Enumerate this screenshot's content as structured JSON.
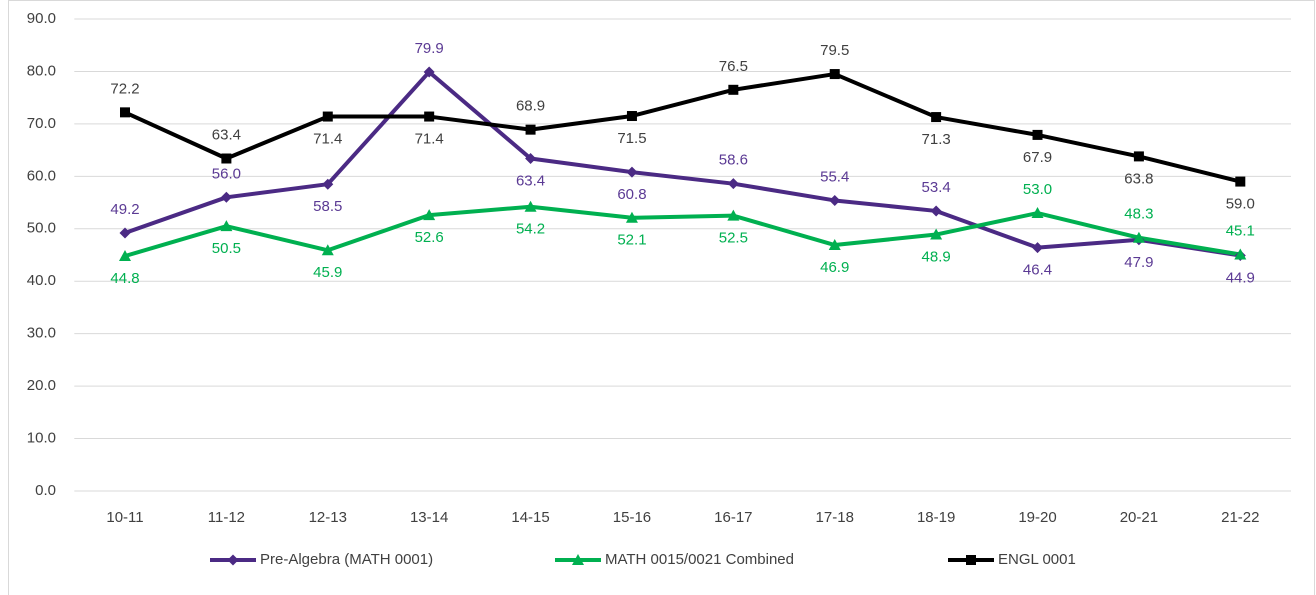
{
  "chart_data": {
    "type": "line",
    "categories": [
      "10-11",
      "11-12",
      "12-13",
      "13-14",
      "14-15",
      "15-16",
      "16-17",
      "17-18",
      "18-19",
      "19-20",
      "20-21",
      "21-22"
    ],
    "series": [
      {
        "name": "Pre-Algebra (MATH 0001)",
        "color": "#4b2a84",
        "label_color": "#5b3a94",
        "marker": "diamond",
        "values": [
          49.2,
          56.0,
          58.5,
          79.9,
          63.4,
          60.8,
          58.6,
          55.4,
          53.4,
          46.4,
          47.9,
          44.9
        ],
        "value_labels": [
          "49.2",
          "56.0",
          "58.5",
          "79.9",
          "63.4",
          "60.8",
          "58.6",
          "55.4",
          "53.4",
          "46.4",
          "47.9",
          "44.9"
        ]
      },
      {
        "name": "MATH 0015/0021 Combined",
        "color": "#00b050",
        "label_color": "#00b050",
        "marker": "triangle",
        "values": [
          44.8,
          50.5,
          45.9,
          52.6,
          54.2,
          52.1,
          52.5,
          46.9,
          48.9,
          53.0,
          48.3,
          45.1
        ],
        "value_labels": [
          "44.8",
          "50.5",
          "45.9",
          "52.6",
          "54.2",
          "52.1",
          "52.5",
          "46.9",
          "48.9",
          "53.0",
          "48.3",
          "45.1"
        ]
      },
      {
        "name": "ENGL 0001",
        "color": "#000000",
        "label_color": "#404040",
        "marker": "square",
        "values": [
          72.2,
          63.4,
          71.4,
          71.4,
          68.9,
          71.5,
          76.5,
          79.5,
          71.3,
          67.9,
          63.8,
          59.0
        ],
        "value_labels": [
          "72.2",
          "63.4",
          "71.4",
          "71.4",
          "68.9",
          "71.5",
          "76.5",
          "79.5",
          "71.3",
          "67.9",
          "63.8",
          "59.0"
        ]
      }
    ],
    "ylim": [
      0,
      90
    ],
    "yticks": [
      {
        "value": 0,
        "label": "0.0"
      },
      {
        "value": 10,
        "label": "10.0"
      },
      {
        "value": 20,
        "label": "20.0"
      },
      {
        "value": 30,
        "label": "30.0"
      },
      {
        "value": 40,
        "label": "40.0"
      },
      {
        "value": 50,
        "label": "50.0"
      },
      {
        "value": 60,
        "label": "60.0"
      },
      {
        "value": 70,
        "label": "70.0"
      },
      {
        "value": 80,
        "label": "80.0"
      },
      {
        "value": 90,
        "label": "90.0"
      }
    ],
    "grid": true,
    "legend": "bottom"
  }
}
